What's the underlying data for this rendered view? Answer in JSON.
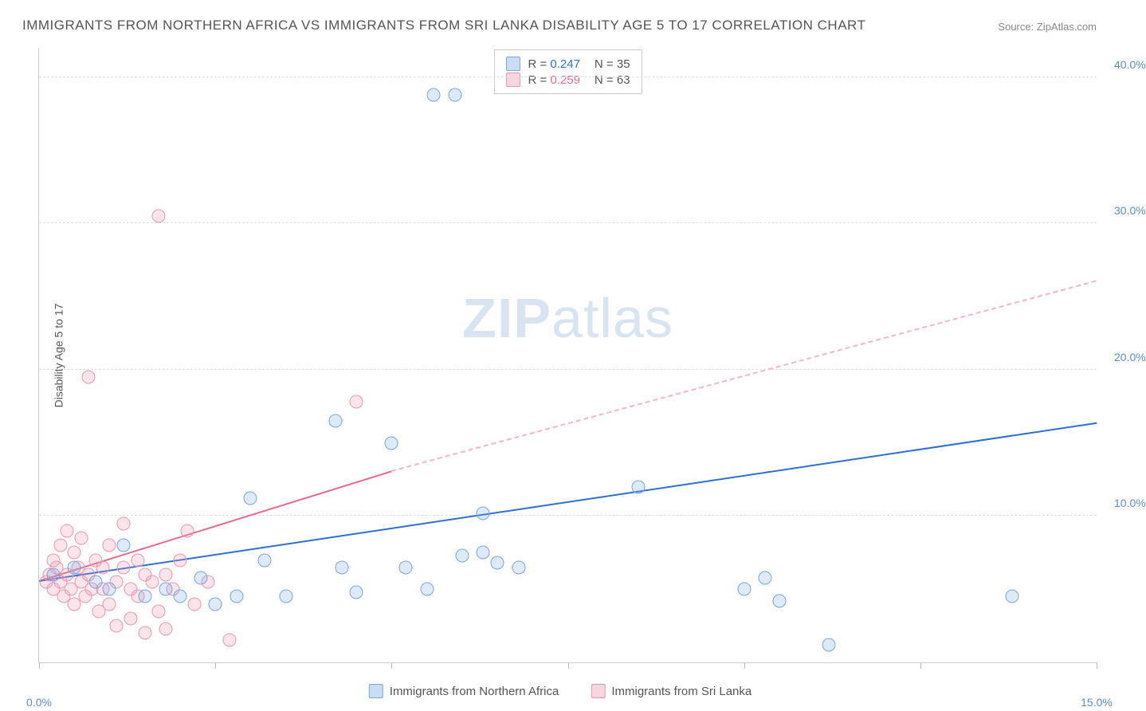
{
  "title": "IMMIGRANTS FROM NORTHERN AFRICA VS IMMIGRANTS FROM SRI LANKA DISABILITY AGE 5 TO 17 CORRELATION CHART",
  "source": {
    "label": "Source:",
    "site": "ZipAtlas.com"
  },
  "y_axis_label": "Disability Age 5 to 17",
  "watermark_zip": "ZIP",
  "watermark_atlas": "atlas",
  "chart": {
    "type": "scatter",
    "background_color": "#ffffff",
    "grid_color": "#dddddd",
    "axis_color": "#cccccc",
    "xlim": [
      0,
      15
    ],
    "ylim": [
      0,
      42
    ],
    "x_ticks": [
      0,
      2.5,
      5,
      7.5,
      10,
      12.5,
      15
    ],
    "x_tick_labels": [
      "0.0%",
      "",
      "",
      "",
      "",
      "",
      "15.0%"
    ],
    "y_gridlines": [
      10,
      20,
      30,
      40
    ],
    "y_tick_labels": [
      "10.0%",
      "20.0%",
      "30.0%",
      "40.0%"
    ],
    "label_color": "#5b8dd6",
    "label_fontsize": 14,
    "marker_size": 17,
    "series": [
      {
        "name": "Immigrants from Northern Africa",
        "color_fill": "rgba(120,170,230,0.25)",
        "color_stroke": "#7ba5d8",
        "trend_color": "#2e6fd3",
        "r": "0.247",
        "n": "35",
        "trend": {
          "x1": 0,
          "y1": 5.5,
          "x2": 15,
          "y2": 16.3
        },
        "points": [
          [
            0.2,
            6
          ],
          [
            0.5,
            6.5
          ],
          [
            0.8,
            5.5
          ],
          [
            1.0,
            5
          ],
          [
            1.2,
            8
          ],
          [
            1.5,
            4.5
          ],
          [
            1.8,
            5
          ],
          [
            2.0,
            4.5
          ],
          [
            2.3,
            5.8
          ],
          [
            2.5,
            4
          ],
          [
            2.8,
            4.5
          ],
          [
            3.0,
            11.2
          ],
          [
            3.2,
            7
          ],
          [
            3.5,
            4.5
          ],
          [
            4.2,
            16.5
          ],
          [
            4.3,
            6.5
          ],
          [
            4.5,
            4.8
          ],
          [
            5.0,
            15
          ],
          [
            5.2,
            6.5
          ],
          [
            5.5,
            5
          ],
          [
            5.6,
            38.8
          ],
          [
            5.9,
            38.8
          ],
          [
            6.0,
            7.3
          ],
          [
            6.3,
            10.2
          ],
          [
            6.3,
            7.5
          ],
          [
            6.5,
            6.8
          ],
          [
            6.8,
            6.5
          ],
          [
            8.5,
            12
          ],
          [
            10.0,
            5
          ],
          [
            10.3,
            5.8
          ],
          [
            10.5,
            4.2
          ],
          [
            11.2,
            1.2
          ],
          [
            13.8,
            4.5
          ]
        ]
      },
      {
        "name": "Immigrants from Sri Lanka",
        "color_fill": "rgba(240,150,175,0.25)",
        "color_stroke": "#e998b0",
        "trend_color": "#e76a8e",
        "trend_dash_color": "#f4b6c7",
        "r": "0.259",
        "n": "63",
        "trend_solid": {
          "x1": 0,
          "y1": 5.5,
          "x2": 5.0,
          "y2": 13.0
        },
        "trend_dash": {
          "x1": 5.0,
          "y1": 13.0,
          "x2": 15,
          "y2": 26.0
        },
        "points": [
          [
            0.1,
            5.5
          ],
          [
            0.15,
            6
          ],
          [
            0.2,
            7
          ],
          [
            0.2,
            5
          ],
          [
            0.25,
            6.5
          ],
          [
            0.3,
            5.5
          ],
          [
            0.3,
            8
          ],
          [
            0.35,
            4.5
          ],
          [
            0.4,
            6
          ],
          [
            0.4,
            9
          ],
          [
            0.45,
            5
          ],
          [
            0.5,
            7.5
          ],
          [
            0.5,
            4
          ],
          [
            0.55,
            6.5
          ],
          [
            0.6,
            5.5
          ],
          [
            0.6,
            8.5
          ],
          [
            0.65,
            4.5
          ],
          [
            0.7,
            19.5
          ],
          [
            0.7,
            6
          ],
          [
            0.75,
            5
          ],
          [
            0.8,
            7
          ],
          [
            0.85,
            3.5
          ],
          [
            0.9,
            6.5
          ],
          [
            0.9,
            5
          ],
          [
            1.0,
            8
          ],
          [
            1.0,
            4
          ],
          [
            1.1,
            5.5
          ],
          [
            1.1,
            2.5
          ],
          [
            1.2,
            6.5
          ],
          [
            1.2,
            9.5
          ],
          [
            1.3,
            5
          ],
          [
            1.3,
            3
          ],
          [
            1.4,
            7
          ],
          [
            1.4,
            4.5
          ],
          [
            1.5,
            2
          ],
          [
            1.5,
            6
          ],
          [
            1.6,
            5.5
          ],
          [
            1.7,
            30.5
          ],
          [
            1.7,
            3.5
          ],
          [
            1.8,
            6
          ],
          [
            1.8,
            2.3
          ],
          [
            1.9,
            5
          ],
          [
            2.0,
            7
          ],
          [
            2.1,
            9
          ],
          [
            2.2,
            4
          ],
          [
            2.4,
            5.5
          ],
          [
            2.7,
            1.5
          ],
          [
            4.5,
            17.8
          ]
        ]
      }
    ]
  },
  "legend": {
    "r_label": "R =",
    "n_label": "N ="
  },
  "bottom_legend": {
    "series1": "Immigrants from Northern Africa",
    "series2": "Immigrants from Sri Lanka"
  }
}
